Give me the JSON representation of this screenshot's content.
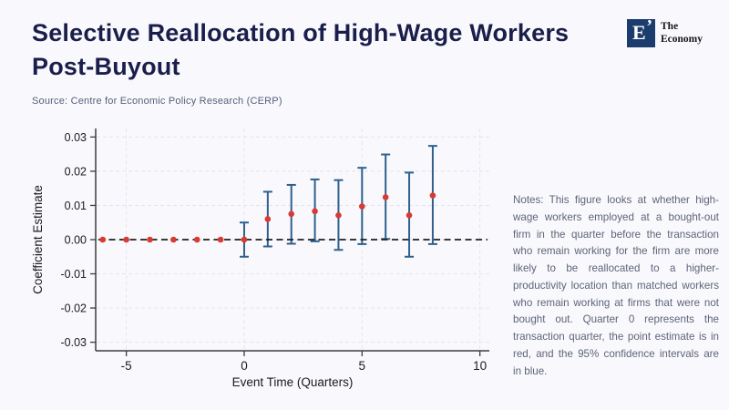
{
  "header": {
    "title": "Selective Reallocation of High-Wage Workers Post-Buyout",
    "source": "Source: Centre for Economic Policy Research (CERP)"
  },
  "logo": {
    "monogram": "E",
    "apostrophe": "’",
    "name_line1": "The",
    "name_line2": "Economy",
    "square_color": "#1d3c6e"
  },
  "notes": "Notes: This figure looks at whether high-wage workers employed at a bought-out firm in the quarter before the transaction who remain working for the firm are more likely to be reallocated to a higher-productivity location than matched workers who remain working at firms that were not bought out. Quarter 0 represents the transaction quarter, the point estimate is in red, and the 95% confidence intervals are in blue.",
  "chart_data": {
    "type": "scatter",
    "subtype": "coefficient-plot-with-error-bars",
    "title": "",
    "xlabel": "Event Time (Quarters)",
    "ylabel": "Coefficient Estimate",
    "xlim": [
      -6.3,
      10.4
    ],
    "ylim": [
      -0.0325,
      0.0325
    ],
    "grid": true,
    "legend_position": "none",
    "zero_line_y": 0,
    "x_ticks": [
      {
        "v": -5,
        "label": "-5"
      },
      {
        "v": 0,
        "label": "0"
      },
      {
        "v": 5,
        "label": "5"
      },
      {
        "v": 10,
        "label": "10"
      }
    ],
    "y_ticks": [
      {
        "v": 0.03,
        "label": "0.03"
      },
      {
        "v": 0.02,
        "label": "0.02"
      },
      {
        "v": 0.01,
        "label": "0.01"
      },
      {
        "v": 0.0,
        "label": "0.00"
      },
      {
        "v": -0.01,
        "label": "-0.01"
      },
      {
        "v": -0.02,
        "label": "-0.02"
      },
      {
        "v": -0.03,
        "label": "-0.03"
      }
    ],
    "series_name": "Point estimate (red) with 95% confidence interval (blue)",
    "points": [
      {
        "x": -6,
        "est": 0.0,
        "lo": 0.0,
        "hi": 0.0
      },
      {
        "x": -5,
        "est": 0.0,
        "lo": 0.0,
        "hi": 0.0
      },
      {
        "x": -4,
        "est": 0.0,
        "lo": 0.0,
        "hi": 0.0
      },
      {
        "x": -3,
        "est": 0.0,
        "lo": 0.0,
        "hi": 0.0
      },
      {
        "x": -2,
        "est": 0.0,
        "lo": 0.0,
        "hi": 0.0
      },
      {
        "x": -1,
        "est": 0.0,
        "lo": 0.0,
        "hi": 0.0
      },
      {
        "x": 0,
        "est": 0.0,
        "lo": -0.005,
        "hi": 0.005
      },
      {
        "x": 1,
        "est": 0.006,
        "lo": -0.002,
        "hi": 0.014
      },
      {
        "x": 2,
        "est": 0.0075,
        "lo": -0.0012,
        "hi": 0.016
      },
      {
        "x": 3,
        "est": 0.0083,
        "lo": -0.0005,
        "hi": 0.0176
      },
      {
        "x": 4,
        "est": 0.0071,
        "lo": -0.003,
        "hi": 0.0174
      },
      {
        "x": 5,
        "est": 0.0097,
        "lo": -0.0013,
        "hi": 0.021
      },
      {
        "x": 6,
        "est": 0.0124,
        "lo": 0.0002,
        "hi": 0.0249
      },
      {
        "x": 7,
        "est": 0.0071,
        "lo": -0.005,
        "hi": 0.0196
      },
      {
        "x": 8,
        "est": 0.0129,
        "lo": -0.0013,
        "hi": 0.0274
      }
    ],
    "colors": {
      "point": "#d93a31",
      "ci": "#2e608f",
      "zero_line": "#1f1f1f",
      "grid": "#e3e5ee",
      "axis": "#3c3c3c"
    }
  }
}
